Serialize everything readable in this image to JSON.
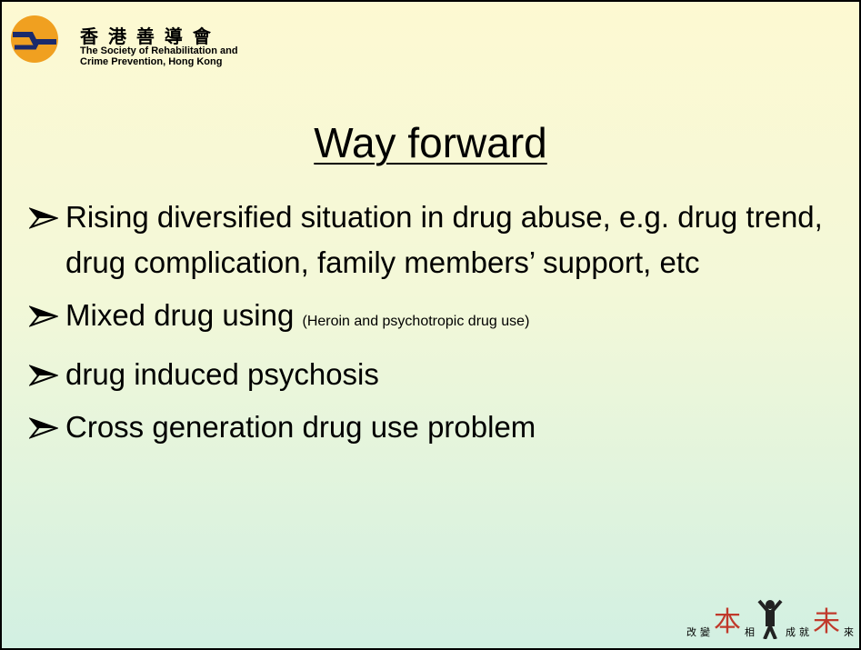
{
  "header": {
    "org_chinese": "香 港 善 導 會",
    "org_english": [
      "The Society of Rehabilitation and",
      "Crime Prevention, Hong Kong"
    ]
  },
  "title": "Way forward",
  "bullets": [
    {
      "text": "Rising diversified situation in drug abuse, e.g. drug trend, drug complication, family members’ support, etc"
    },
    {
      "text": "Mixed drug using",
      "note": "(Heroin and psychotropic drug use)"
    },
    {
      "text": "drug induced psychosis"
    },
    {
      "text": "Cross generation drug use problem"
    }
  ],
  "footer": {
    "slogan": [
      "改",
      "變",
      "本",
      "相",
      "成",
      "就",
      "未",
      "來"
    ]
  }
}
